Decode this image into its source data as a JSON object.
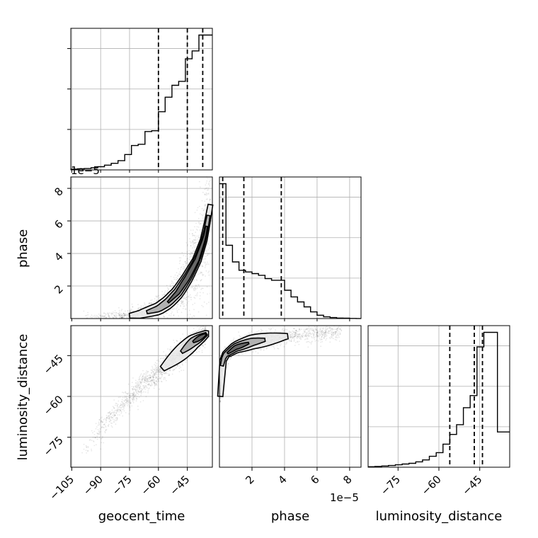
{
  "chart_data": {
    "type": "corner",
    "parameters": [
      "geocent_time",
      "phase",
      "luminosity_distance"
    ],
    "labels": {
      "geocent_time": "geocent_time",
      "phase": "phase",
      "luminosity_distance": "luminosity_distance"
    },
    "offset_text": {
      "phase_axis": "1e−5"
    },
    "ranges": {
      "geocent_time": [
        -105.5,
        -32
      ],
      "phase": [
        0,
        8.7
      ],
      "luminosity_distance": [
        -86,
        -34
      ]
    },
    "ticks": {
      "geocent_time": [
        -105,
        -90,
        -75,
        -60,
        -45
      ],
      "phase": [
        2,
        4,
        6,
        8
      ],
      "luminosity_distance": [
        -75,
        -60,
        -45
      ]
    },
    "tick_labels": {
      "geocent_time": [
        "−105",
        "−90",
        "−75",
        "−60",
        "−45"
      ],
      "phase": [
        "2",
        "4",
        "6",
        "8"
      ],
      "luminosity_distance": [
        "−75",
        "−60",
        "−45"
      ]
    },
    "quantiles": {
      "geocent_time": [
        -60,
        -45,
        -37
      ],
      "phase": [
        0.2,
        1.5,
        3.8
      ],
      "luminosity_distance": [
        -56,
        -47,
        -44
      ]
    },
    "histograms": {
      "geocent_time": {
        "edges": [
          -105.5,
          -102,
          -98.5,
          -95,
          -91.5,
          -88,
          -84.5,
          -81,
          -77.5,
          -74,
          -70.5,
          -67,
          -63.5,
          -60,
          -56.5,
          -53,
          -49.5,
          -46,
          -42.5,
          -39,
          -35.5,
          -32
        ],
        "counts": [
          0.3,
          0.4,
          0.5,
          0.8,
          1.2,
          1.8,
          2.5,
          3.5,
          5.8,
          9.2,
          9.7,
          14.5,
          14.8,
          22,
          27.5,
          32,
          33.5,
          42,
          45,
          51,
          51
        ]
      },
      "phase": {
        "edges": [
          0,
          0.4,
          0.8,
          1.2,
          1.6,
          2.0,
          2.4,
          2.8,
          3.2,
          3.6,
          4.0,
          4.4,
          4.8,
          5.2,
          5.6,
          6.0,
          6.4,
          6.8,
          7.2,
          7.6,
          8.0,
          8.4,
          8.7
        ],
        "counts": [
          81,
          44,
          34,
          29,
          28,
          27,
          26,
          24,
          23,
          23,
          17,
          13,
          10,
          7,
          4,
          2,
          1,
          0.6,
          0.3,
          0.2,
          0.1,
          0.05
        ]
      },
      "luminosity_distance": {
        "edges": [
          -86,
          -83.5,
          -81,
          -78.5,
          -76,
          -73.5,
          -71,
          -68.5,
          -66,
          -63.5,
          -61,
          -58.5,
          -56,
          -53.5,
          -51,
          -48.5,
          -46,
          -43.5,
          -41.5,
          -38.5,
          -36,
          -34
        ],
        "counts": [
          0.2,
          0.3,
          0.5,
          0.7,
          1,
          1.3,
          1.6,
          2.2,
          3,
          4.5,
          6,
          9.5,
          13.5,
          17.5,
          24.5,
          29.5,
          49.5,
          55.5,
          55.5,
          14.5,
          14.5
        ]
      }
    },
    "joint_series": [
      {
        "name": "phase vs geocent_time",
        "description_trend": "phase rises steeply as geocent_time increases",
        "centerline": [
          [
            -100,
            0.02
          ],
          [
            -90,
            0.05
          ],
          [
            -80,
            0.1
          ],
          [
            -70,
            0.25
          ],
          [
            -60,
            0.6
          ],
          [
            -55,
            1.0
          ],
          [
            -50,
            1.6
          ],
          [
            -45,
            2.5
          ],
          [
            -40,
            3.6
          ],
          [
            -36,
            5.0
          ],
          [
            -33,
            7.0
          ]
        ]
      },
      {
        "name": "luminosity_distance vs geocent_time",
        "description_trend": "approximately linear",
        "centerline": [
          [
            -100,
            -80
          ],
          [
            -90,
            -72
          ],
          [
            -80,
            -64
          ],
          [
            -70,
            -57
          ],
          [
            -60,
            -51
          ],
          [
            -50,
            -45
          ],
          [
            -42,
            -40
          ],
          [
            -35,
            -37
          ]
        ]
      },
      {
        "name": "luminosity_distance vs phase",
        "description_trend": "luminosity_distance increases quickly at small phase then saturates",
        "centerline": [
          [
            0.05,
            -60
          ],
          [
            0.1,
            -50
          ],
          [
            0.3,
            -45
          ],
          [
            1.0,
            -42
          ],
          [
            2.0,
            -40
          ],
          [
            3.0,
            -39
          ],
          [
            4.0,
            -38
          ],
          [
            5.5,
            -37
          ],
          [
            7.5,
            -36
          ]
        ]
      }
    ],
    "grid": true
  }
}
